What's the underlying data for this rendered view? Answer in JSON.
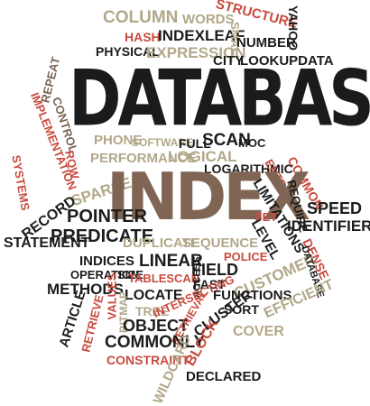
{
  "palette": {
    "black": "#1c1c1c",
    "tan": "#b2a889",
    "brown": "#7a6455",
    "red": "#c94b3e"
  },
  "words": {
    "column": "COLUMN",
    "words": "WORDS",
    "structure": "STRUCTURE",
    "yahoo": "YAHOO",
    "hash": "HASH",
    "indexleaf": "INDEXLEAF",
    "small": "SMALL",
    "number": "NUMBER",
    "physical": "PHYSICAL",
    "expression": "EXPRESSION",
    "city": "CITY",
    "lookupdata": "LOOKUPDATA",
    "repeat": "REPEAT",
    "database": "DATABASE",
    "implementation": "IMPLEMENTATION",
    "control": "CONTROL",
    "phone": "PHONE",
    "software": "SOFTWARE",
    "full": "FULL",
    "scan": "SCAN",
    "moc": "MOC",
    "systems": "SYSTEMS",
    "row": "ROW",
    "performance": "PERFORMANCE",
    "logical": "LOGICAL",
    "logarithmic": "LOGARITHMIC",
    "common": "COMMON",
    "entry": "ENTRY",
    "speed": "SPEED",
    "sparse": "SPARSE",
    "index": "INDEX",
    "require": "REQUIRE",
    "record": "RECORD",
    "pointer": "POINTER",
    "limitations": "LIMITATIONS",
    "set": "SET",
    "identifiers": "IDENTIFIERS",
    "statement": "STATEMENT",
    "predicate": "PREDICATE",
    "level": "LEVEL",
    "duplicate": "DUPLICATE",
    "sequence": "SEQUENCE",
    "police": "POLICE",
    "dense": "DENSE",
    "indices": "INDICES",
    "linear": "LINEAR",
    "field": "FIELD",
    "customer": "CUSTOMER",
    "operation": "OPERATION",
    "size": "SIZE",
    "tablescan": "TABLESCAN",
    "access": "ACCESS",
    "fast": "FAST",
    "databases": "DATABASE",
    "methods": "METHODS",
    "values": "VALUES",
    "locate": "LOCATE",
    "functions": "FUNCTIONS",
    "efficient": "EFFICIENT",
    "article": "ARTICLE",
    "retrieve": "RETRIEVE",
    "bitmap": "BITMAP",
    "tree": "TREE",
    "intersecting": "INTERSECTING",
    "sort": "SORT",
    "object": "OBJECT",
    "retrieval": "RETRIEVAL",
    "cluster": "CLUSTER",
    "cover": "COVER",
    "commonly": "COMMONLY",
    "block": "BLOCK",
    "constraint": "CONSTRAINT",
    "wildcard": "WILDCARD",
    "declared": "DECLARED"
  }
}
